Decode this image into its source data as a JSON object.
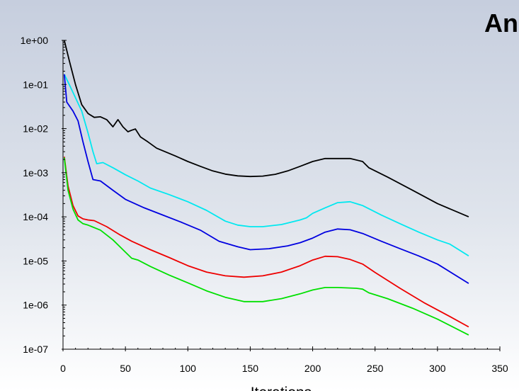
{
  "logo_text": "Ansys",
  "chart_data": {
    "type": "line",
    "title": "",
    "xlabel": "Iterations",
    "ylabel": "",
    "xlim": [
      0,
      350
    ],
    "ylim": [
      1e-07,
      1
    ],
    "yscale": "log",
    "grid": false,
    "x_ticks": [
      0,
      50,
      100,
      150,
      200,
      250,
      300,
      350
    ],
    "x_tick_labels": [
      "0",
      "50",
      "100",
      "150",
      "200",
      "250",
      "300",
      "350"
    ],
    "y_ticks": [
      1e-07,
      1e-06,
      1e-05,
      0.0001,
      0.001,
      0.01,
      0.1,
      1
    ],
    "y_tick_labels": [
      "1e-07",
      "1e-06",
      "1e-05",
      "1e-04",
      "1e-03",
      "1e-02",
      "1e-01",
      "1e+00"
    ],
    "series": [
      {
        "color": "#000000",
        "points": [
          [
            1,
            1.0
          ],
          [
            5,
            0.35
          ],
          [
            10,
            0.1
          ],
          [
            15,
            0.035
          ],
          [
            20,
            0.022
          ],
          [
            25,
            0.018
          ],
          [
            30,
            0.0185
          ],
          [
            35,
            0.016
          ],
          [
            40,
            0.011
          ],
          [
            44,
            0.016
          ],
          [
            48,
            0.011
          ],
          [
            52,
            0.0085
          ],
          [
            55,
            0.0092
          ],
          [
            58,
            0.0098
          ],
          [
            62,
            0.0065
          ],
          [
            68,
            0.005
          ],
          [
            75,
            0.0036
          ],
          [
            90,
            0.0024
          ],
          [
            100,
            0.0018
          ],
          [
            110,
            0.0014
          ],
          [
            120,
            0.0011
          ],
          [
            130,
            0.00093
          ],
          [
            140,
            0.00085
          ],
          [
            150,
            0.00082
          ],
          [
            160,
            0.00084
          ],
          [
            170,
            0.00092
          ],
          [
            180,
            0.0011
          ],
          [
            190,
            0.0014
          ],
          [
            200,
            0.0018
          ],
          [
            210,
            0.0021
          ],
          [
            220,
            0.0021
          ],
          [
            230,
            0.0021
          ],
          [
            240,
            0.0018
          ],
          [
            245,
            0.0013
          ],
          [
            260,
            0.0008
          ],
          [
            280,
            0.0004
          ],
          [
            300,
            0.0002
          ],
          [
            325,
            0.0001
          ]
        ]
      },
      {
        "color": "#00e8f0",
        "points": [
          [
            1,
            0.17
          ],
          [
            5,
            0.1
          ],
          [
            10,
            0.05
          ],
          [
            15,
            0.025
          ],
          [
            20,
            0.008
          ],
          [
            24,
            0.003
          ],
          [
            27,
            0.0016
          ],
          [
            32,
            0.0017
          ],
          [
            40,
            0.0013
          ],
          [
            50,
            0.0009
          ],
          [
            60,
            0.00065
          ],
          [
            70,
            0.00045
          ],
          [
            85,
            0.00032
          ],
          [
            100,
            0.00022
          ],
          [
            115,
            0.00014
          ],
          [
            130,
            8e-05
          ],
          [
            140,
            6.5e-05
          ],
          [
            150,
            6e-05
          ],
          [
            160,
            6e-05
          ],
          [
            175,
            6.7e-05
          ],
          [
            190,
            8.5e-05
          ],
          [
            195,
            9.5e-05
          ],
          [
            200,
            0.00012
          ],
          [
            210,
            0.00016
          ],
          [
            220,
            0.00021
          ],
          [
            230,
            0.00022
          ],
          [
            240,
            0.00018
          ],
          [
            255,
            0.00011
          ],
          [
            270,
            7e-05
          ],
          [
            285,
            4.5e-05
          ],
          [
            300,
            3e-05
          ],
          [
            310,
            2.4e-05
          ],
          [
            325,
            1.3e-05
          ]
        ]
      },
      {
        "color": "#0000e0",
        "points": [
          [
            1,
            0.17
          ],
          [
            3,
            0.04
          ],
          [
            8,
            0.025
          ],
          [
            12,
            0.015
          ],
          [
            16,
            0.005
          ],
          [
            20,
            0.0018
          ],
          [
            24,
            0.0007
          ],
          [
            30,
            0.00065
          ],
          [
            40,
            0.0004
          ],
          [
            50,
            0.00025
          ],
          [
            65,
            0.00016
          ],
          [
            80,
            0.00011
          ],
          [
            95,
            7.5e-05
          ],
          [
            110,
            5e-05
          ],
          [
            125,
            2.8e-05
          ],
          [
            140,
            2.1e-05
          ],
          [
            150,
            1.8e-05
          ],
          [
            165,
            1.9e-05
          ],
          [
            180,
            2.2e-05
          ],
          [
            190,
            2.6e-05
          ],
          [
            200,
            3.3e-05
          ],
          [
            210,
            4.5e-05
          ],
          [
            220,
            5.3e-05
          ],
          [
            230,
            5.1e-05
          ],
          [
            240,
            4.2e-05
          ],
          [
            255,
            2.8e-05
          ],
          [
            270,
            1.9e-05
          ],
          [
            285,
            1.3e-05
          ],
          [
            300,
            8.5e-06
          ],
          [
            325,
            3.1e-06
          ]
        ]
      },
      {
        "color": "#ee0000",
        "points": [
          [
            1,
            0.0023
          ],
          [
            4,
            0.0005
          ],
          [
            8,
            0.00018
          ],
          [
            12,
            0.000105
          ],
          [
            16,
            9e-05
          ],
          [
            20,
            8.5e-05
          ],
          [
            25,
            8.2e-05
          ],
          [
            35,
            6e-05
          ],
          [
            45,
            4e-05
          ],
          [
            55,
            2.8e-05
          ],
          [
            70,
            1.8e-05
          ],
          [
            85,
            1.2e-05
          ],
          [
            100,
            7.8e-06
          ],
          [
            115,
            5.6e-06
          ],
          [
            130,
            4.6e-06
          ],
          [
            145,
            4.3e-06
          ],
          [
            160,
            4.6e-06
          ],
          [
            175,
            5.6e-06
          ],
          [
            190,
            7.8e-06
          ],
          [
            200,
            1.05e-05
          ],
          [
            210,
            1.28e-05
          ],
          [
            220,
            1.25e-05
          ],
          [
            230,
            1.08e-05
          ],
          [
            240,
            8.5e-06
          ],
          [
            250,
            5.5e-06
          ],
          [
            270,
            2.4e-06
          ],
          [
            290,
            1.1e-06
          ],
          [
            310,
            5.5e-07
          ],
          [
            325,
            3.2e-07
          ]
        ]
      },
      {
        "color": "#00e000",
        "points": [
          [
            1,
            0.0022
          ],
          [
            4,
            0.0004
          ],
          [
            8,
            0.00015
          ],
          [
            12,
            8.5e-05
          ],
          [
            16,
            7e-05
          ],
          [
            20,
            6.5e-05
          ],
          [
            30,
            5e-05
          ],
          [
            40,
            3e-05
          ],
          [
            48,
            1.8e-05
          ],
          [
            55,
            1.15e-05
          ],
          [
            60,
            1.05e-05
          ],
          [
            70,
            7.5e-06
          ],
          [
            85,
            4.8e-06
          ],
          [
            100,
            3.2e-06
          ],
          [
            115,
            2.1e-06
          ],
          [
            130,
            1.5e-06
          ],
          [
            145,
            1.2e-06
          ],
          [
            160,
            1.2e-06
          ],
          [
            175,
            1.4e-06
          ],
          [
            190,
            1.8e-06
          ],
          [
            200,
            2.2e-06
          ],
          [
            210,
            2.5e-06
          ],
          [
            220,
            2.5e-06
          ],
          [
            235,
            2.4e-06
          ],
          [
            240,
            2.3e-06
          ],
          [
            245,
            1.9e-06
          ],
          [
            260,
            1.4e-06
          ],
          [
            280,
            8.5e-07
          ],
          [
            300,
            4.8e-07
          ],
          [
            325,
            2.1e-07
          ]
        ]
      }
    ]
  }
}
